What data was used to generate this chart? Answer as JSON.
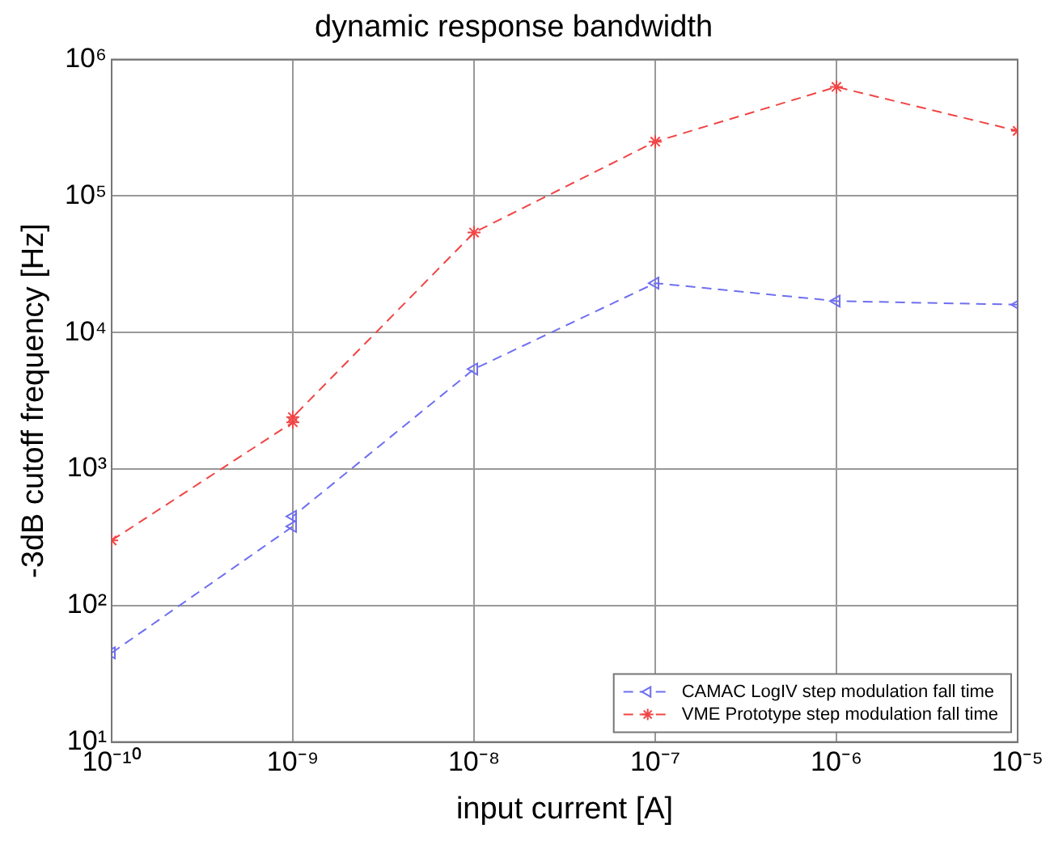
{
  "chart_data": {
    "type": "line",
    "title": "dynamic response bandwidth",
    "xlabel": "input current [A]",
    "ylabel": "-3dB cutoff frequency [Hz]",
    "log": "xy",
    "grid": true,
    "legend": "bottom right",
    "line_style": "dashed",
    "xlim": [
      1e-10,
      1e-05
    ],
    "ylim": [
      10,
      1000000
    ],
    "xticks": [
      {
        "value": 1e-10,
        "label": "10⁻¹⁰"
      },
      {
        "value": 1e-09,
        "label": "10⁻⁹"
      },
      {
        "value": 1e-08,
        "label": "10⁻⁸"
      },
      {
        "value": 1e-07,
        "label": "10⁻⁷"
      },
      {
        "value": 1e-06,
        "label": "10⁻⁶"
      },
      {
        "value": 1e-05,
        "label": "10⁻⁵"
      }
    ],
    "yticks": [
      {
        "value": 10,
        "label": "10¹"
      },
      {
        "value": 100,
        "label": "10²"
      },
      {
        "value": 1000,
        "label": "10³"
      },
      {
        "value": 10000,
        "label": "10⁴"
      },
      {
        "value": 100000,
        "label": "10⁵"
      },
      {
        "value": 1000000,
        "label": "10⁶"
      }
    ],
    "series": [
      {
        "name": "CAMAC LogIV step modulation fall time",
        "color": "#6f6ff0",
        "marker": "triangle",
        "x": [
          1e-10,
          1e-09,
          1e-09,
          1e-08,
          1e-07,
          1e-06,
          1e-05
        ],
        "values": [
          45,
          380,
          450,
          5400,
          23000,
          17000,
          16000
        ]
      },
      {
        "name": "VME Prototype step modulation fall time",
        "color": "#f04545",
        "marker": "cross",
        "x": [
          1e-10,
          1e-09,
          1e-09,
          1e-08,
          1e-07,
          1e-06,
          1e-05
        ],
        "values": [
          300,
          2200,
          2400,
          54000,
          250000,
          630000,
          300000
        ]
      }
    ]
  }
}
